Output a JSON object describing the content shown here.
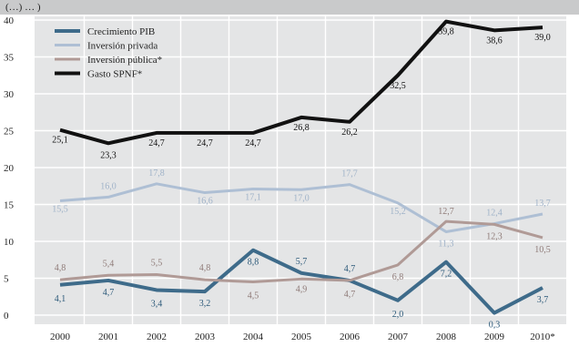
{
  "chart_data": {
    "type": "line",
    "title": "(…) … )",
    "categories": [
      "2000",
      "2001",
      "2002",
      "2003",
      "2004",
      "2005",
      "2006",
      "2007",
      "2008",
      "2009",
      "2010*"
    ],
    "ylim": [
      0,
      40
    ],
    "yticks": [
      0,
      5,
      10,
      15,
      20,
      25,
      30,
      35,
      40
    ],
    "grid": true,
    "legend_position": "top-left",
    "series": [
      {
        "name": "Crecimiento PIB",
        "color": "#3e6b8a",
        "values": [
          4.1,
          4.7,
          3.4,
          3.2,
          8.8,
          5.7,
          4.7,
          2.0,
          7.2,
          0.3,
          3.7
        ],
        "labels": [
          "4,1",
          "4,7",
          "3,4",
          "3,2",
          "8,8",
          "5,7",
          "4,7",
          "2,0",
          "7,2",
          "0,3",
          "3,7"
        ]
      },
      {
        "name": "Inversión privada",
        "color": "#aebfd4",
        "values": [
          15.5,
          16.0,
          17.8,
          16.6,
          17.1,
          17.0,
          17.7,
          15.2,
          11.3,
          12.4,
          13.7
        ],
        "labels": [
          "15,5",
          "16,0",
          "17,8",
          "16,6",
          "17,1",
          "17,0",
          "17,7",
          "15,2",
          "11,3",
          "12,4",
          "13,7"
        ]
      },
      {
        "name": "Inversión pública*",
        "color": "#b09a96",
        "values": [
          4.8,
          5.4,
          5.5,
          4.8,
          4.5,
          4.9,
          4.7,
          6.8,
          12.7,
          12.3,
          10.5
        ],
        "labels": [
          "4,8",
          "5,4",
          "5,5",
          "4,8",
          "4,5",
          "4,9",
          "4,7",
          "6,8",
          "12,7",
          "12,3",
          "10,5"
        ]
      },
      {
        "name": "Gasto SPNF*",
        "color": "#111111",
        "values": [
          25.1,
          23.3,
          24.7,
          24.7,
          24.7,
          26.8,
          26.2,
          32.5,
          39.8,
          38.6,
          39.0
        ],
        "labels": [
          "25,1",
          "23,3",
          "24,7",
          "24,7",
          "24,7",
          "26,8",
          "26,2",
          "32,5",
          "39,8",
          "38,6",
          "39,0"
        ]
      }
    ]
  },
  "colors": {
    "header_bg": "#c9cacb",
    "plot_bg": "#e4e5e6",
    "grid": "#ffffff"
  }
}
